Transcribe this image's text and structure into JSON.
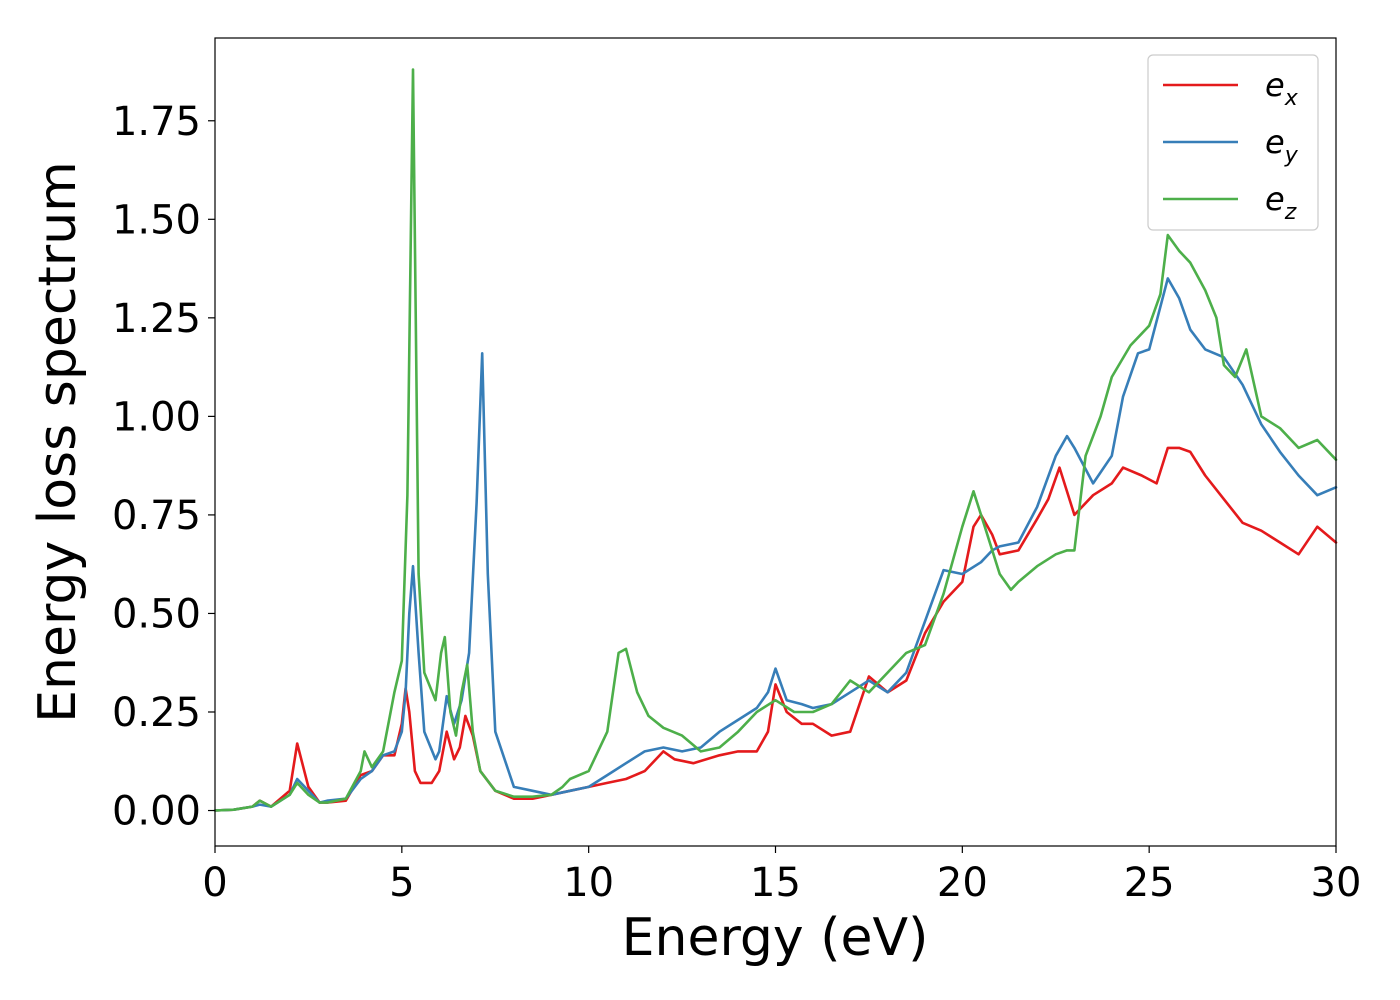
{
  "chart_data": {
    "type": "line",
    "title": "",
    "xlabel": "Energy (eV)",
    "ylabel": "Energy loss spectrum",
    "xlim": [
      0,
      30
    ],
    "ylim": [
      -0.09,
      1.96
    ],
    "xticks": [
      0,
      5,
      10,
      15,
      20,
      25,
      30
    ],
    "xtick_labels": [
      "0",
      "5",
      "10",
      "15",
      "20",
      "25",
      "30"
    ],
    "yticks": [
      0,
      0.25,
      0.5,
      0.75,
      1.0,
      1.25,
      1.5,
      1.75
    ],
    "ytick_labels": [
      "0.00",
      "0.25",
      "0.50",
      "0.75",
      "1.00",
      "1.25",
      "1.50",
      "1.75"
    ],
    "grid": false,
    "legend_position": "top-right",
    "series": [
      {
        "name": "e",
        "subscript": "x",
        "color": "#e41a1c",
        "x": [
          0,
          0.5,
          1.0,
          1.2,
          1.5,
          2.0,
          2.2,
          2.5,
          2.8,
          3.0,
          3.5,
          3.9,
          4.2,
          4.5,
          4.8,
          5.0,
          5.1,
          5.2,
          5.35,
          5.5,
          5.8,
          6.0,
          6.2,
          6.4,
          6.55,
          6.7,
          6.9,
          7.1,
          7.5,
          8.0,
          8.5,
          9.0,
          9.5,
          10.0,
          10.5,
          11.0,
          11.5,
          12.0,
          12.3,
          12.8,
          13.5,
          14.0,
          14.5,
          14.8,
          15.0,
          15.3,
          15.7,
          16.0,
          16.5,
          17.0,
          17.5,
          18.0,
          18.5,
          19.0,
          19.5,
          20.0,
          20.3,
          20.5,
          20.8,
          21.0,
          21.5,
          22.0,
          22.3,
          22.6,
          23.0,
          23.5,
          24.0,
          24.3,
          24.8,
          25.2,
          25.5,
          25.8,
          26.1,
          26.5,
          27.0,
          27.5,
          28.0,
          28.5,
          29.0,
          29.5,
          30.0
        ],
        "y": [
          0,
          0.002,
          0.01,
          0.025,
          0.01,
          0.05,
          0.17,
          0.06,
          0.02,
          0.02,
          0.025,
          0.09,
          0.1,
          0.14,
          0.14,
          0.22,
          0.31,
          0.25,
          0.1,
          0.07,
          0.07,
          0.1,
          0.2,
          0.13,
          0.16,
          0.24,
          0.19,
          0.1,
          0.05,
          0.03,
          0.03,
          0.04,
          0.05,
          0.06,
          0.07,
          0.08,
          0.1,
          0.15,
          0.13,
          0.12,
          0.14,
          0.15,
          0.15,
          0.2,
          0.32,
          0.25,
          0.22,
          0.22,
          0.19,
          0.2,
          0.34,
          0.3,
          0.33,
          0.45,
          0.53,
          0.58,
          0.72,
          0.75,
          0.7,
          0.65,
          0.66,
          0.74,
          0.79,
          0.87,
          0.75,
          0.8,
          0.83,
          0.87,
          0.85,
          0.83,
          0.92,
          0.92,
          0.91,
          0.85,
          0.79,
          0.73,
          0.71,
          0.68,
          0.65,
          0.72,
          0.68
        ]
      },
      {
        "name": "e",
        "subscript": "y",
        "color": "#377eb8",
        "x": [
          0,
          0.5,
          1.0,
          1.2,
          1.5,
          2.0,
          2.2,
          2.5,
          2.8,
          3.0,
          3.5,
          3.9,
          4.2,
          4.5,
          4.8,
          5.0,
          5.1,
          5.2,
          5.3,
          5.45,
          5.6,
          5.9,
          6.0,
          6.2,
          6.4,
          6.6,
          6.8,
          7.0,
          7.15,
          7.3,
          7.5,
          8.0,
          8.5,
          9.0,
          9.5,
          10.0,
          10.5,
          11.0,
          11.5,
          12.0,
          12.5,
          13.0,
          13.5,
          14.0,
          14.5,
          14.8,
          15.0,
          15.3,
          15.7,
          16.0,
          16.5,
          17.0,
          17.5,
          18.0,
          18.5,
          19.0,
          19.5,
          20.0,
          20.5,
          20.8,
          21.0,
          21.5,
          22.0,
          22.5,
          22.8,
          23.0,
          23.5,
          24.0,
          24.3,
          24.7,
          25.0,
          25.5,
          25.8,
          26.1,
          26.5,
          27.0,
          27.5,
          28.0,
          28.5,
          29.0,
          29.5,
          30.0
        ],
        "y": [
          0,
          0.002,
          0.01,
          0.015,
          0.01,
          0.04,
          0.08,
          0.05,
          0.02,
          0.025,
          0.03,
          0.08,
          0.1,
          0.14,
          0.15,
          0.2,
          0.3,
          0.5,
          0.62,
          0.4,
          0.2,
          0.13,
          0.15,
          0.29,
          0.22,
          0.28,
          0.4,
          0.78,
          1.16,
          0.6,
          0.2,
          0.06,
          0.05,
          0.04,
          0.05,
          0.06,
          0.09,
          0.12,
          0.15,
          0.16,
          0.15,
          0.16,
          0.2,
          0.23,
          0.26,
          0.3,
          0.36,
          0.28,
          0.27,
          0.26,
          0.27,
          0.3,
          0.33,
          0.3,
          0.35,
          0.48,
          0.61,
          0.6,
          0.63,
          0.66,
          0.67,
          0.68,
          0.77,
          0.9,
          0.95,
          0.92,
          0.83,
          0.9,
          1.05,
          1.16,
          1.17,
          1.35,
          1.3,
          1.22,
          1.17,
          1.15,
          1.08,
          0.98,
          0.91,
          0.85,
          0.8,
          0.82
        ]
      },
      {
        "name": "e",
        "subscript": "z",
        "color": "#4daf4a",
        "x": [
          0,
          0.5,
          1.0,
          1.2,
          1.5,
          2.0,
          2.2,
          2.5,
          2.8,
          3.0,
          3.5,
          3.9,
          4.0,
          4.2,
          4.5,
          4.8,
          5.0,
          5.15,
          5.3,
          5.45,
          5.6,
          5.9,
          6.05,
          6.15,
          6.3,
          6.45,
          6.6,
          6.75,
          6.9,
          7.1,
          7.5,
          8.0,
          8.5,
          9.0,
          9.3,
          9.5,
          10.0,
          10.5,
          10.8,
          11.0,
          11.3,
          11.6,
          12.0,
          12.5,
          13.0,
          13.5,
          14.0,
          14.5,
          15.0,
          15.5,
          16.0,
          16.5,
          17.0,
          17.5,
          18.0,
          18.5,
          19.0,
          19.5,
          20.0,
          20.3,
          20.6,
          21.0,
          21.3,
          21.5,
          22.0,
          22.5,
          22.8,
          23.0,
          23.3,
          23.7,
          24.0,
          24.5,
          25.0,
          25.3,
          25.5,
          25.8,
          26.1,
          26.5,
          26.8,
          27.0,
          27.3,
          27.6,
          28.0,
          28.5,
          29.0,
          29.5,
          30.0
        ],
        "y": [
          0,
          0.002,
          0.01,
          0.025,
          0.01,
          0.04,
          0.07,
          0.04,
          0.02,
          0.02,
          0.03,
          0.1,
          0.15,
          0.11,
          0.15,
          0.3,
          0.38,
          0.8,
          1.88,
          0.6,
          0.35,
          0.28,
          0.4,
          0.44,
          0.25,
          0.19,
          0.3,
          0.37,
          0.2,
          0.1,
          0.05,
          0.035,
          0.035,
          0.04,
          0.06,
          0.08,
          0.1,
          0.2,
          0.4,
          0.41,
          0.3,
          0.24,
          0.21,
          0.19,
          0.15,
          0.16,
          0.2,
          0.25,
          0.28,
          0.25,
          0.25,
          0.27,
          0.33,
          0.3,
          0.35,
          0.4,
          0.42,
          0.55,
          0.72,
          0.81,
          0.72,
          0.6,
          0.56,
          0.58,
          0.62,
          0.65,
          0.66,
          0.66,
          0.9,
          1.0,
          1.1,
          1.18,
          1.23,
          1.31,
          1.46,
          1.42,
          1.39,
          1.32,
          1.25,
          1.13,
          1.1,
          1.17,
          1.0,
          0.97,
          0.92,
          0.94,
          0.89
        ]
      }
    ]
  }
}
